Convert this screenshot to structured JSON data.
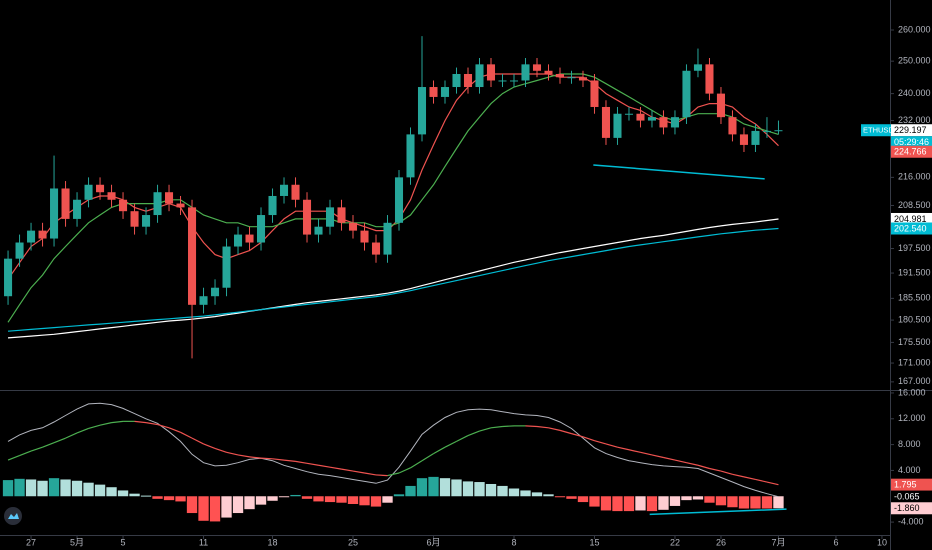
{
  "chart_data": [
    {
      "type": "candlestick",
      "symbol": "ETHUSD3M",
      "countdown": "05:29:46",
      "log": true,
      "xlim": [
        -0.7,
        76.7
      ],
      "xticks": [
        {
          "value": 2,
          "label": "27"
        },
        {
          "value": 6,
          "label": "5月"
        },
        {
          "value": 10,
          "label": "5"
        },
        {
          "value": 17,
          "label": "11"
        },
        {
          "value": 23,
          "label": "18"
        },
        {
          "value": 30,
          "label": "25"
        },
        {
          "value": 37,
          "label": "6月"
        },
        {
          "value": 44,
          "label": "8"
        },
        {
          "value": 51,
          "label": "15"
        },
        {
          "value": 58,
          "label": "22"
        },
        {
          "value": 62,
          "label": "26"
        },
        {
          "value": 67,
          "label": "7月"
        },
        {
          "value": 72,
          "label": "6"
        },
        {
          "value": 76,
          "label": "10"
        }
      ],
      "ylim": [
        165.3,
        270
      ],
      "yticks": [
        {
          "value": 260,
          "label": "260.000"
        },
        {
          "value": 250,
          "label": "250.000"
        },
        {
          "value": 240,
          "label": "240.000"
        },
        {
          "value": 232,
          "label": "232.000"
        },
        {
          "value": 216,
          "label": "216.000"
        },
        {
          "value": 208.5,
          "label": "208.500"
        },
        {
          "value": 197.5,
          "label": "197.500"
        },
        {
          "value": 191.5,
          "label": "191.500"
        },
        {
          "value": 185.5,
          "label": "185.500"
        },
        {
          "value": 180.5,
          "label": "180.500"
        },
        {
          "value": 175.5,
          "label": "175.500"
        },
        {
          "value": 171,
          "label": "171.000"
        },
        {
          "value": 167,
          "label": "167.000"
        }
      ],
      "up_color": "#26a69a",
      "down_color": "#ef5350",
      "open": [
        186,
        195,
        199,
        202,
        200,
        213,
        205,
        210,
        214,
        212,
        210,
        207,
        203,
        206,
        212,
        209,
        208,
        184,
        186,
        188,
        198,
        201,
        199,
        206,
        211,
        214,
        210,
        201,
        203,
        208,
        204,
        202,
        199,
        196,
        204,
        216,
        228,
        242,
        239,
        242,
        246,
        242,
        249,
        244,
        244,
        244,
        249,
        247,
        246,
        245,
        245,
        244,
        236,
        227,
        234,
        234,
        232,
        233,
        230,
        233,
        247,
        249,
        240,
        233,
        228,
        225,
        229,
        229
      ],
      "high": [
        197,
        201,
        204,
        204,
        222,
        215,
        212,
        216,
        216,
        214,
        212,
        209,
        208,
        214,
        214,
        211,
        210,
        188,
        190,
        200,
        203,
        203,
        208,
        213,
        216,
        216,
        212,
        205,
        210,
        210,
        206,
        204,
        201,
        206,
        218,
        230,
        258,
        244,
        244,
        248,
        248,
        251,
        251,
        246,
        246,
        251,
        251,
        249,
        248,
        247,
        247,
        246,
        238,
        236,
        236,
        236,
        235,
        235,
        235,
        249,
        254,
        251,
        242,
        235,
        230,
        231,
        233,
        232
      ],
      "low": [
        184,
        193,
        197,
        198,
        198,
        203,
        203,
        208,
        210,
        208,
        205,
        201,
        201,
        204,
        207,
        206,
        172,
        182,
        184,
        186,
        196,
        197,
        197,
        204,
        209,
        208,
        199,
        199,
        201,
        202,
        200,
        197,
        194,
        194,
        202,
        214,
        226,
        237,
        237,
        240,
        240,
        240,
        242,
        242,
        242,
        242,
        245,
        244,
        243,
        243,
        242,
        234,
        225,
        225,
        232,
        230,
        230,
        228,
        228,
        231,
        245,
        238,
        231,
        226,
        223,
        223,
        227,
        228
      ],
      "close": [
        195,
        199,
        202,
        200,
        213,
        205,
        210,
        214,
        212,
        210,
        207,
        203,
        206,
        212,
        209,
        208,
        184,
        186,
        188,
        198,
        201,
        199,
        206,
        211,
        214,
        210,
        201,
        203,
        208,
        204,
        202,
        199,
        196,
        204,
        216,
        228,
        242,
        239,
        242,
        246,
        242,
        249,
        244,
        244,
        244,
        249,
        247,
        246,
        245,
        245,
        244,
        236,
        227,
        234,
        234,
        232,
        233,
        230,
        233,
        247,
        249,
        240,
        233,
        228,
        225,
        229,
        229,
        229.197
      ],
      "last_label": "229.197",
      "tag_color": "#00bcd4",
      "series": [
        {
          "color": "#ef5350",
          "last_label": "224.766",
          "values": [
            190,
            194,
            198,
            200,
            204,
            206,
            208,
            210,
            211,
            211,
            210,
            208,
            207,
            208,
            209,
            208,
            203,
            199,
            196,
            195,
            196,
            197,
            199,
            202,
            205,
            207,
            207,
            207,
            207,
            205,
            204,
            203,
            202,
            202,
            205,
            210,
            218,
            225,
            232,
            238,
            242,
            245,
            246,
            246,
            246,
            246,
            246,
            246,
            245,
            245,
            245,
            243,
            240,
            238,
            236,
            235,
            233,
            232,
            231,
            233,
            236,
            237,
            237,
            236,
            233,
            231,
            228,
            224.766
          ]
        },
        {
          "color": "#4caf50",
          "values": [
            180,
            184,
            188,
            191,
            195,
            198,
            201,
            204,
            206,
            208,
            209,
            209,
            209,
            209,
            210,
            210,
            208,
            206,
            205,
            204,
            204,
            203,
            203,
            203,
            204,
            205,
            205,
            205,
            205,
            204,
            204,
            204,
            203,
            203,
            204,
            206,
            210,
            214,
            219,
            224,
            229,
            233,
            237,
            240,
            242,
            243,
            244,
            245,
            246,
            246,
            246,
            245,
            243,
            241,
            239,
            237,
            235,
            233,
            232,
            233,
            234,
            234,
            234,
            233,
            231,
            230,
            229,
            228
          ]
        },
        {
          "color": "#ffffff",
          "last_label": "204.981",
          "values": [
            176.5,
            176.7,
            176.9,
            177.1,
            177.3,
            177.6,
            177.9,
            178.2,
            178.5,
            178.8,
            179.1,
            179.4,
            179.7,
            180,
            180.3,
            180.5,
            180.7,
            181,
            181.3,
            181.7,
            182.1,
            182.5,
            182.9,
            183.3,
            183.7,
            184.1,
            184.5,
            184.8,
            185.1,
            185.4,
            185.7,
            186,
            186.3,
            186.7,
            187.2,
            187.8,
            188.5,
            189.2,
            189.9,
            190.6,
            191.3,
            192,
            192.7,
            193.4,
            194.1,
            194.7,
            195.3,
            195.9,
            196.5,
            197,
            197.5,
            198,
            198.5,
            199,
            199.5,
            200,
            200.4,
            200.8,
            201.3,
            201.8,
            202.3,
            202.8,
            203.2,
            203.6,
            203.9,
            204.2,
            204.6,
            204.981
          ]
        },
        {
          "color": "#00bcd4",
          "last_label": "202.540",
          "values": [
            178,
            178.2,
            178.4,
            178.6,
            178.8,
            179,
            179.2,
            179.4,
            179.6,
            179.8,
            180,
            180.2,
            180.4,
            180.6,
            180.8,
            181,
            181.2,
            181.4,
            181.7,
            182,
            182.3,
            182.6,
            182.9,
            183.2,
            183.5,
            183.8,
            184.1,
            184.4,
            184.7,
            185,
            185.3,
            185.6,
            185.9,
            186.3,
            186.8,
            187.3,
            187.9,
            188.5,
            189.1,
            189.7,
            190.3,
            190.9,
            191.5,
            192.1,
            192.7,
            193.3,
            193.9,
            194.5,
            195,
            195.5,
            196,
            196.5,
            197,
            197.5,
            198,
            198.4,
            198.8,
            199.2,
            199.6,
            200,
            200.4,
            200.8,
            201.2,
            201.5,
            201.8,
            202.1,
            202.3,
            202.54
          ]
        }
      ],
      "trendlines": [
        {
          "color": "#00bcd4",
          "x": [
            50.9,
            65.8
          ],
          "y": [
            219.4,
            215.6
          ]
        }
      ]
    },
    {
      "type": "macd",
      "ylim": [
        -6,
        16.3
      ],
      "yticks": [
        {
          "value": 16,
          "label": "16.000"
        },
        {
          "value": 12,
          "label": "12.000"
        },
        {
          "value": 8,
          "label": "8.000"
        },
        {
          "value": 4,
          "label": "4.000"
        },
        {
          "value": -4,
          "label": "-4.000"
        }
      ],
      "histogram": {
        "colors": [
          "#26a69a",
          "#b2dfdb",
          "#ff5252",
          "#ffcdd2"
        ],
        "last_label": "-1.860",
        "values": [
          2.5,
          2.7,
          2.6,
          2.4,
          2.8,
          2.6,
          2.4,
          2.1,
          1.8,
          1.4,
          0.9,
          0.4,
          0.1,
          -0.4,
          -0.6,
          -0.8,
          -2.6,
          -3.8,
          -3.9,
          -3.3,
          -2.6,
          -2,
          -1.3,
          -0.7,
          -0.1,
          0.2,
          -0.4,
          -0.8,
          -0.9,
          -1,
          -1.2,
          -1.4,
          -1.6,
          -1,
          0.3,
          1.6,
          2.8,
          3,
          2.8,
          2.6,
          2.3,
          2.2,
          1.9,
          1.6,
          1.2,
          0.9,
          0.6,
          0.3,
          -0.1,
          -0.4,
          -0.9,
          -1.6,
          -2.2,
          -2.3,
          -2.3,
          -2.2,
          -2.3,
          -2.1,
          -1.5,
          -0.6,
          -0.5,
          -1,
          -1.4,
          -1.7,
          -1.9,
          -1.9,
          -1.9,
          -1.86
        ]
      },
      "series": [
        {
          "color": "#b2b5be",
          "last_label": "-0.065",
          "values": [
            8.5,
            9.5,
            10.2,
            10.6,
            11.5,
            12.5,
            13.5,
            14.3,
            14.4,
            14.2,
            13.6,
            12.8,
            12,
            11.3,
            10,
            8.5,
            6.5,
            5.2,
            4.7,
            4.8,
            5.2,
            5.7,
            5.9,
            5.5,
            4.8,
            4.3,
            3.8,
            3.4,
            3.2,
            2.9,
            2.6,
            2.3,
            2,
            2.5,
            4.5,
            7,
            9.6,
            11,
            12.2,
            13,
            13.4,
            13.5,
            13.4,
            13.1,
            12.8,
            12.6,
            12.5,
            12.2,
            11.5,
            10.5,
            9,
            7.5,
            6.6,
            6,
            5.5,
            5.2,
            4.9,
            4.7,
            4.6,
            4.5,
            4.3,
            3.6,
            2.9,
            2.2,
            1.5,
            0.9,
            0.4,
            -0.065
          ]
        },
        {
          "color": "#ef5350",
          "up_color": "#4caf50",
          "last_label": "1.795",
          "values": [
            5.6,
            6.3,
            7,
            7.6,
            8.3,
            9,
            9.8,
            10.5,
            11,
            11.4,
            11.6,
            11.6,
            11.4,
            11.1,
            10.6,
            9.9,
            9,
            8.1,
            7.4,
            6.8,
            6.4,
            6.1,
            5.9,
            5.8,
            5.6,
            5.4,
            5.1,
            4.8,
            4.5,
            4.2,
            3.9,
            3.6,
            3.3,
            3.2,
            3.6,
            4.4,
            5.5,
            6.6,
            7.6,
            8.5,
            9.4,
            10.1,
            10.6,
            10.8,
            10.9,
            10.9,
            10.8,
            10.6,
            10.2,
            9.7,
            9.2,
            8.6,
            8.1,
            7.6,
            7.2,
            6.8,
            6.4,
            6,
            5.6,
            5.2,
            4.8,
            4.3,
            3.9,
            3.4,
            3,
            2.6,
            2.2,
            1.795
          ]
        }
      ],
      "trendlines": [
        {
          "color": "#00bcd4",
          "x": [
            55.8,
            67.7
          ],
          "y": [
            -2.8,
            -2.0
          ]
        }
      ]
    }
  ]
}
